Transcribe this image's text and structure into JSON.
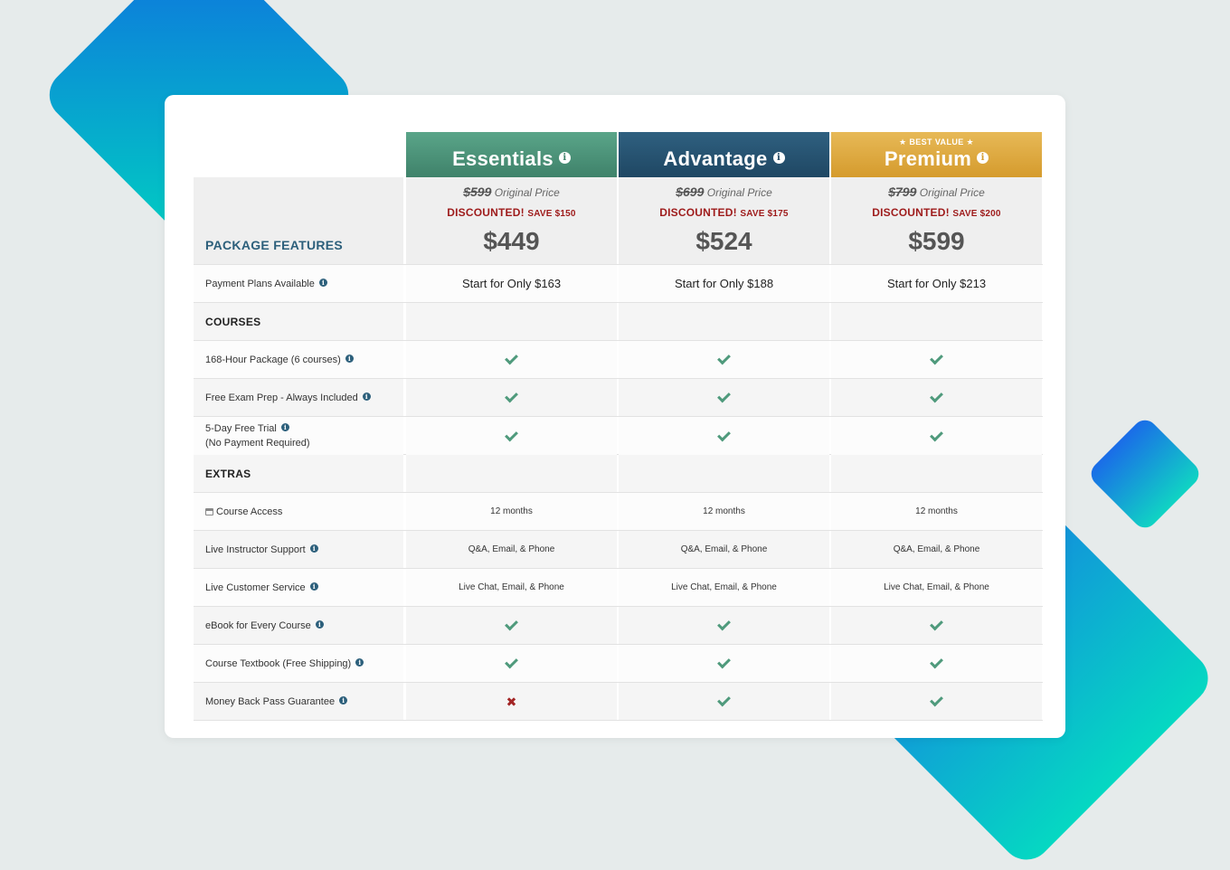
{
  "plans": [
    {
      "name": "Essentials",
      "badge": "",
      "original_price": "$599",
      "original_label": "Original Price",
      "discount_label": "DISCOUNTED!",
      "save_label": "SAVE $150",
      "price": "$449",
      "payment_plan": "Start for Only $163",
      "accent": "#4f9a7c"
    },
    {
      "name": "Advantage",
      "badge": "",
      "original_price": "$699",
      "original_label": "Original Price",
      "discount_label": "DISCOUNTED!",
      "save_label": "SAVE $175",
      "price": "$524",
      "payment_plan": "Start for Only $188",
      "accent": "#244f6c"
    },
    {
      "name": "Premium",
      "badge": "★ BEST VALUE ★",
      "original_price": "$799",
      "original_label": "Original Price",
      "discount_label": "DISCOUNTED!",
      "save_label": "SAVE $200",
      "price": "$599",
      "payment_plan": "Start for Only $213",
      "accent": "#dca63c"
    }
  ],
  "features_heading": "PACKAGE FEATURES",
  "rows": [
    {
      "label": "Payment Plans Available",
      "type": "payment"
    },
    {
      "label": "COURSES",
      "type": "section"
    },
    {
      "label": "168-Hour Package (6 courses)",
      "type": "check",
      "values": [
        "check",
        "check",
        "check"
      ]
    },
    {
      "label": "Free Exam Prep - Always Included",
      "type": "check",
      "values": [
        "check",
        "check",
        "check"
      ]
    },
    {
      "label": "5-Day Free Trial",
      "label2": "(No Payment Required)",
      "type": "check",
      "values": [
        "check",
        "check",
        "check"
      ]
    },
    {
      "label": "EXTRAS",
      "type": "section"
    },
    {
      "label": "Course Access",
      "type": "text",
      "values": [
        "12 months",
        "12 months",
        "12 months"
      ],
      "icon": "calendar-icon"
    },
    {
      "label": "Live Instructor Support",
      "type": "text",
      "values": [
        "Q&A, Email, & Phone",
        "Q&A, Email, & Phone",
        "Q&A, Email, & Phone"
      ]
    },
    {
      "label": "Live Customer Service",
      "type": "text",
      "values": [
        "Live Chat, Email, & Phone",
        "Live Chat, Email, & Phone",
        "Live Chat, Email, & Phone"
      ]
    },
    {
      "label": "eBook for Every Course",
      "type": "check",
      "values": [
        "check",
        "check",
        "check"
      ]
    },
    {
      "label": "Course Textbook (Free Shipping)",
      "type": "check",
      "values": [
        "check",
        "check",
        "check"
      ]
    },
    {
      "label": "Money Back Pass Guarantee",
      "type": "check",
      "values": [
        "cross",
        "check",
        "check"
      ]
    }
  ],
  "colors": {
    "check": "#4f9a7c",
    "cross": "#a32525",
    "features_heading": "#2c5f7b",
    "discount": "#9e1b1b"
  }
}
